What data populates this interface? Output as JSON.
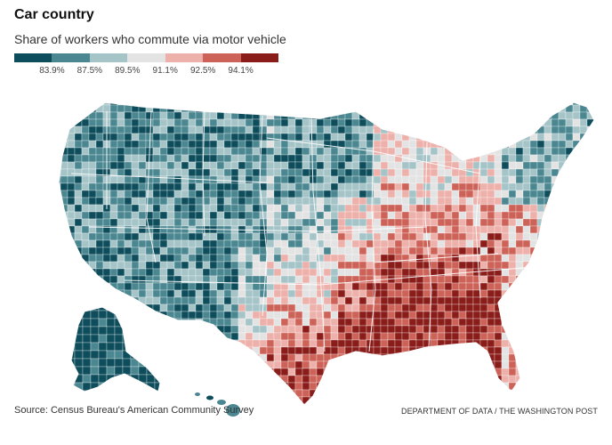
{
  "title": "Car country",
  "subtitle": "Share of workers who commute via motor vehicle",
  "legend": {
    "colors": [
      "#0e4e5c",
      "#4a8791",
      "#a4c4c8",
      "#e3e3e3",
      "#eeb0aa",
      "#cc6258",
      "#8a1c1a"
    ],
    "ticks": [
      "83.9%",
      "87.5%",
      "89.5%",
      "91.1%",
      "92.5%",
      "94.1%"
    ]
  },
  "map": {
    "regions": [
      "Alaska",
      "Hawaii",
      "Contiguous United States"
    ]
  },
  "footer": {
    "source": "Source: Census Bureau's American Community Survey",
    "credit": "DEPARTMENT OF DATA / THE WASHINGTON POST"
  }
}
